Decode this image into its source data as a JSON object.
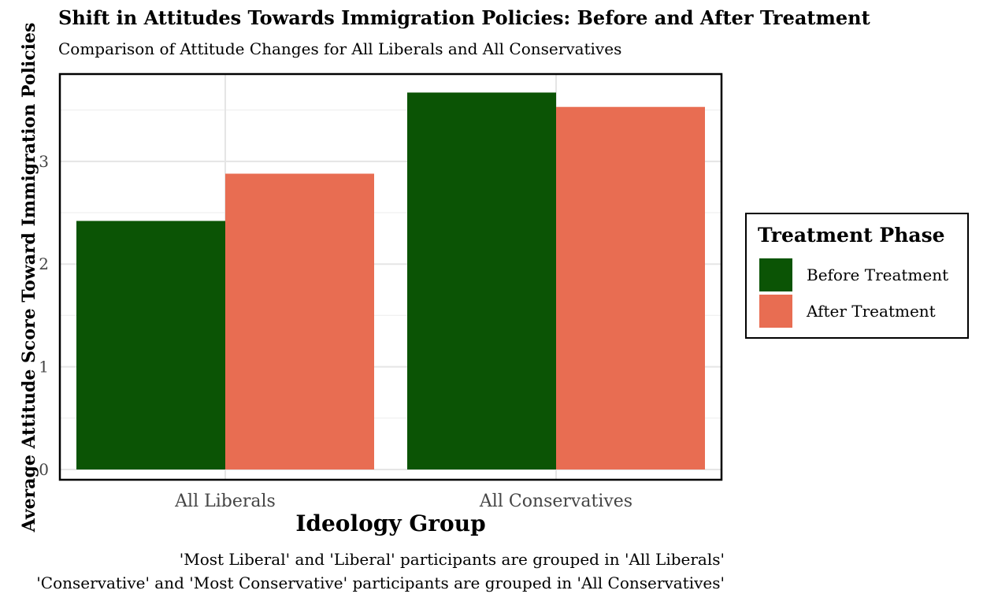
{
  "chart_data": {
    "type": "bar",
    "title": "Shift in Attitudes Towards Immigration Policies: Before and After Treatment",
    "subtitle": "Comparison of Attitude Changes for All Liberals and All Conservatives",
    "xlabel": "Ideology Group",
    "ylabel": "Average Attitude Score Toward Immigration Policies",
    "categories": [
      "All Liberals",
      "All Conservatives"
    ],
    "series": [
      {
        "name": "Before Treatment",
        "color": "#0b5405",
        "values": [
          2.42,
          3.67
        ]
      },
      {
        "name": "After Treatment",
        "color": "#e86d52",
        "values": [
          2.88,
          3.53
        ]
      }
    ],
    "ylim": [
      -0.1,
      3.85
    ],
    "yticks": [
      0,
      1,
      2,
      3
    ],
    "grid": true,
    "legend": {
      "title": "Treatment Phase",
      "placement": "right"
    },
    "caption": [
      "'Most Liberal' and 'Liberal' participants are grouped in 'All Liberals'",
      "'Conservative' and 'Most Conservative' participants are grouped in 'All Conservatives'"
    ]
  }
}
